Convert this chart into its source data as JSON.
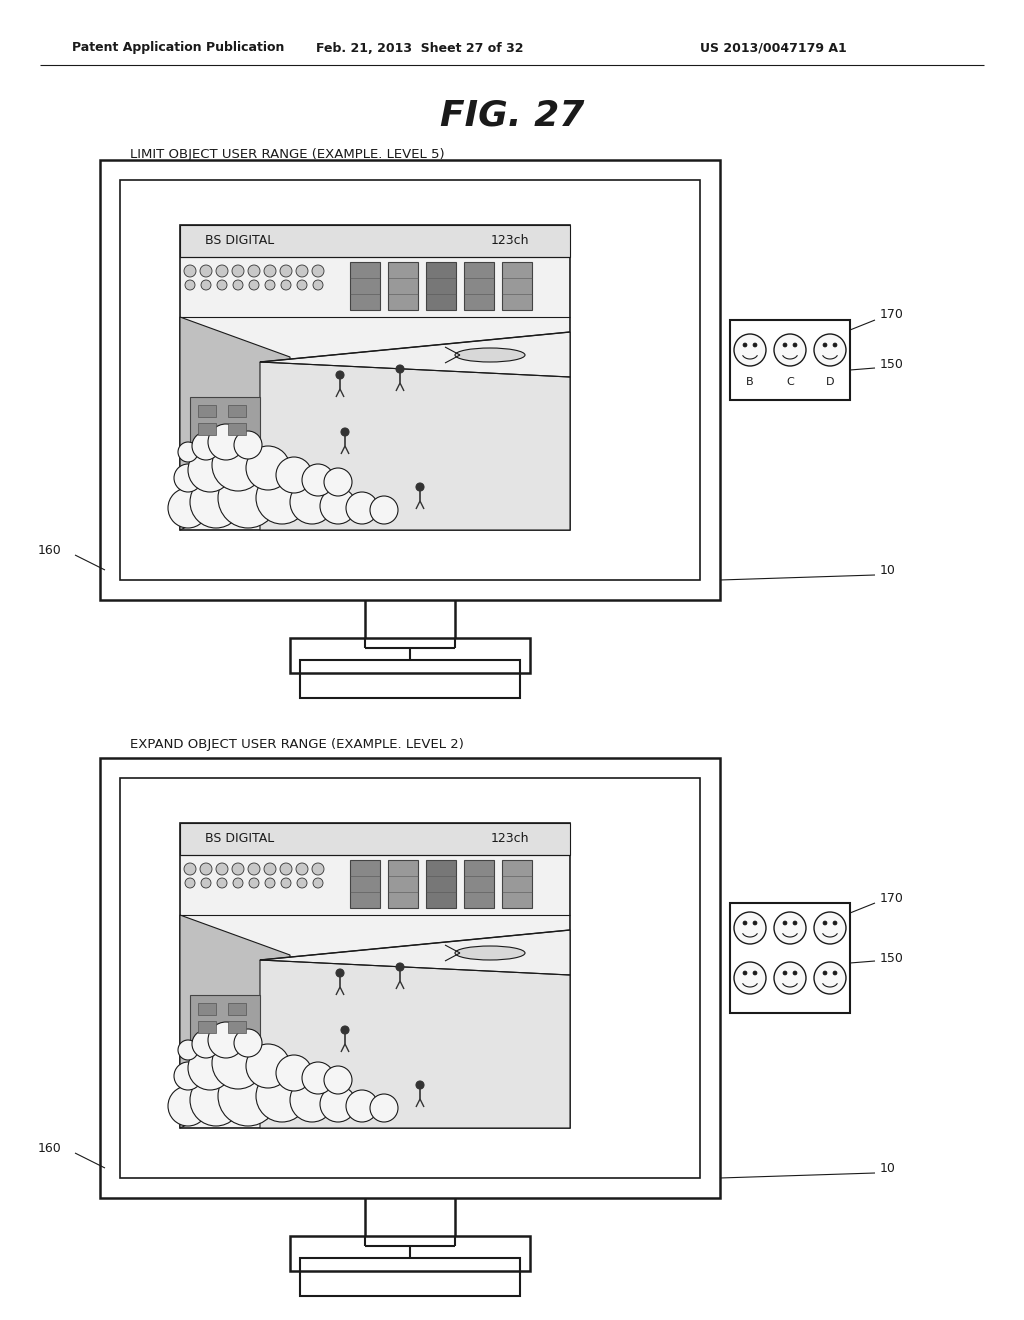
{
  "header_left": "Patent Application Publication",
  "header_mid": "Feb. 21, 2013  Sheet 27 of 32",
  "header_right": "US 2013/0047179 A1",
  "fig_title": "FIG. 27",
  "label_top": "LIMIT OBJECT USER RANGE (EXAMPLE. LEVEL 5)",
  "label_bottom": "EXPAND OBJECT USER RANGE (EXAMPLE. LEVEL 2)",
  "screen_text_bs": "BS DIGITAL",
  "screen_text_ch": "123ch",
  "bg_color": "#ffffff",
  "line_color": "#1a1a1a"
}
